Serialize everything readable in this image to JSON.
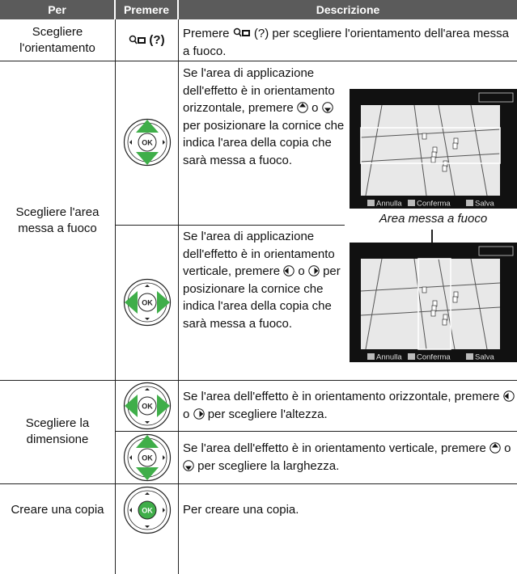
{
  "table": {
    "header": [
      "Per",
      "Premere",
      "Descrizione"
    ],
    "rows": [
      {
        "per": "Scegliere l'orientamento",
        "premere": "(?)",
        "items": [
          {
            "descrizione": [
              "Premere",
              "(?) per scegliere l'orientamento dell'area messa a fuoco."
            ]
          }
        ]
      },
      {
        "per": "Scegliere l'area messa a fuoco",
        "items": [
          {
            "descrizione": [
              "Se l'area di applicazione dell'effetto è in orientamento orizzontale, premere",
              "o",
              "per posizionare la cornice che indica l'area della copia che sarà messa a fuoco."
            ]
          },
          {
            "descrizione": [
              "Se l'area di applicazione dell'effetto è in orientamento verticale, premere",
              "o",
              "per posizionare la cornice che indica l'area della copia che sarà messa a fuoco."
            ]
          }
        ]
      },
      {
        "per": "Scegliere la dimensione",
        "items": [
          {
            "descrizione": [
              "Se l'area dell'effetto è in orientamento orizzontale, premere",
              "o",
              "per scegliere l'altezza."
            ]
          },
          {
            "descrizione": [
              "Se l'area dell'effetto è in orientamento verticale, premere",
              "o",
              "per scegliere la larghezza."
            ]
          }
        ]
      },
      {
        "per": "Creare una copia",
        "items": [
          {
            "descrizione": [
              "Per creare una copia."
            ]
          }
        ]
      }
    ]
  },
  "screen": {
    "buttons": [
      "Annulla",
      "Conferma",
      "Salva"
    ],
    "caption": "Area messa a fuoco"
  },
  "ok_label": "OK"
}
